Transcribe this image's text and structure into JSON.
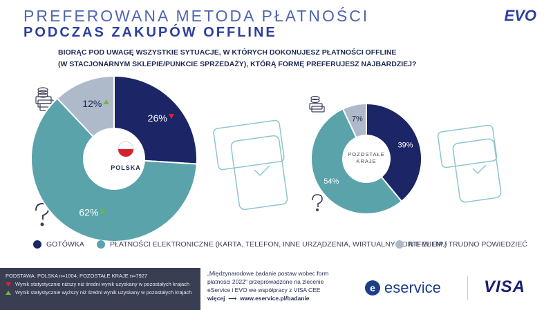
{
  "header": {
    "title_line1": "PREFEROWANA METODA PŁATNOŚCI",
    "title_line2": "PODCZAS ZAKUPÓW OFFLINE",
    "logo": "EVO"
  },
  "question": {
    "line1": "BIORĄC POD UWAGĘ WSZYSTKIE SYTUACJE, W KTÓRYCH DOKONUJESZ PŁATNOŚCI OFFLINE",
    "line2": "(W STACJONARNYM SKLEPIE/PUNKCIE SPRZEDAŻY), KTÓRĄ FORMĘ PREFERUJESZ NAJBARDZIEJ?"
  },
  "colors": {
    "gotowka": "#1c2566",
    "elektroniczne": "#5aa3ab",
    "nie_wiem": "#aeb9c9",
    "title": "#2d3f9e",
    "arrow_down": "#e0242a",
    "arrow_up": "#6cb93a"
  },
  "chart_data": [
    {
      "type": "pie",
      "center_label": "POLSKA",
      "categories": [
        "GOTÓWKA",
        "PŁATNOŚCI ELEKTRONICZNE (KARTA, TELEFON, INNE URZĄDZENIA, WIRTUALNY PORTFEL ITP.)",
        "NIE WIEM / TRUDNO POWIEDZIEĆ"
      ],
      "values": [
        26,
        62,
        12
      ],
      "labels": [
        "26%",
        "62%",
        "12%"
      ],
      "markers": [
        "down",
        "up",
        "up"
      ]
    },
    {
      "type": "pie",
      "center_label": "POZOSTAŁE KRAJE",
      "categories": [
        "GOTÓWKA",
        "PŁATNOŚCI ELEKTRONICZNE (KARTA, TELEFON, INNE URZĄDZENIA, WIRTUALNY PORTFEL ITP.)",
        "NIE WIEM / TRUDNO POWIEDZIEĆ"
      ],
      "values": [
        39,
        54,
        7
      ],
      "labels": [
        "39%",
        "54%",
        "7%"
      ]
    }
  ],
  "legend": {
    "gotowka": "GOTÓWKA",
    "elektroniczne": "PŁATNOŚCI ELEKTRONICZNE (KARTA, TELEFON, INNE URZĄDZENIA, WIRTUALNY PORTFEL ITP.)",
    "nie_wiem": "NIE WIEM / TRUDNO POWIEDZIEĆ"
  },
  "footer": {
    "base": "PODSTAWA: POLSKA n=1004; POZOSTAŁE KRAJE n=7927",
    "note_lower": "Wynik statystycznie niższy niż średni wynik uzyskany w pozostałych krajach",
    "note_higher": "Wynik statystycznie wyższy niż średni wynik uzyskany w pozostałych krajach",
    "source_line1": "„Międzynarodowe badanie postaw wobec form",
    "source_line2": "płatności 2022\" przeprowadzone na zlecenie",
    "source_line3": "eService i EVO we współpracy z VISA CEE",
    "more_label": "więcej",
    "more_url": "www.eservice.pl/badanie",
    "eservice_logo": "eservice",
    "visa_logo": "VISA"
  }
}
